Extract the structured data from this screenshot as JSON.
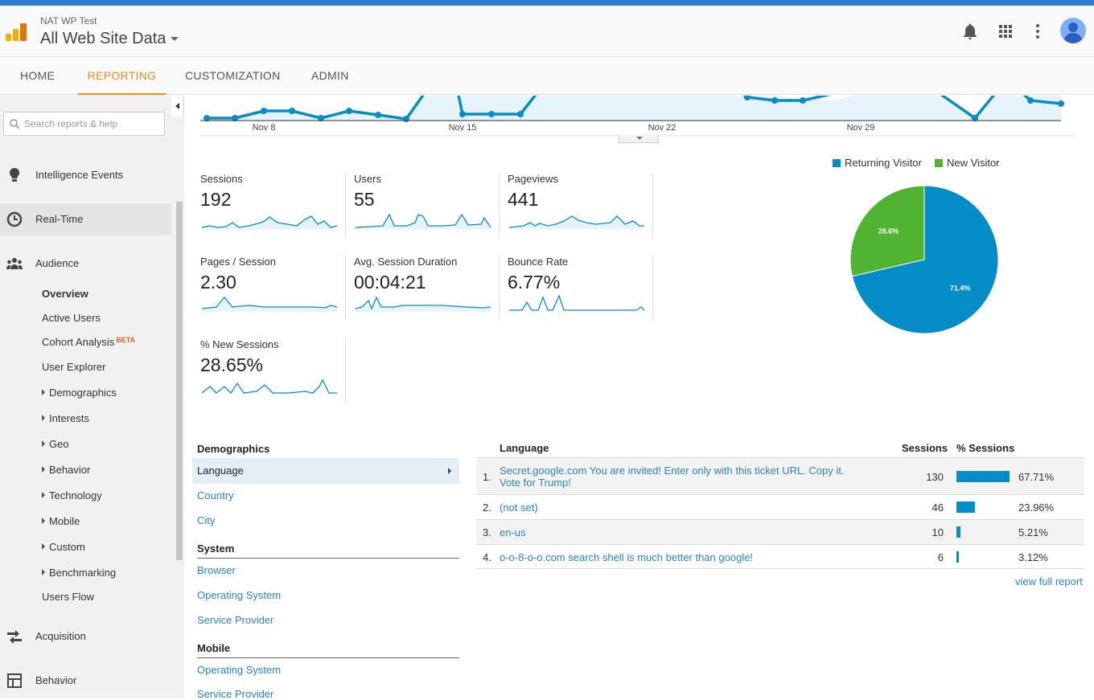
{
  "header": {
    "account": "NAT WP Test",
    "property": "All Web Site Data",
    "icons": [
      "logo-icon",
      "bell-icon",
      "apps-grid-icon",
      "more-vert-icon",
      "avatar"
    ]
  },
  "nav": {
    "tabs": [
      "HOME",
      "REPORTING",
      "CUSTOMIZATION",
      "ADMIN"
    ],
    "active": "REPORTING"
  },
  "sidebar": {
    "search_placeholder": "Search reports & help",
    "sections": {
      "intelligence": "Intelligence Events",
      "realtime": "Real-Time",
      "audience": "Audience",
      "acquisition": "Acquisition",
      "behavior": "Behavior"
    },
    "audience_items": {
      "overview": "Overview",
      "active_users": "Active Users",
      "cohort": "Cohort Analysis",
      "beta": "BETA",
      "user_explorer": "User Explorer",
      "demographics": "Demographics",
      "interests": "Interests",
      "geo": "Geo",
      "behavior": "Behavior",
      "technology": "Technology",
      "mobile": "Mobile",
      "custom": "Custom",
      "benchmarking": "Benchmarking",
      "users_flow": "Users Flow"
    }
  },
  "timeline": {
    "x_labels": [
      "Nov 8",
      "Nov 15",
      "Nov 22",
      "Nov 29"
    ]
  },
  "metrics": {
    "sessions": {
      "name": "Sessions",
      "value": "192"
    },
    "users": {
      "name": "Users",
      "value": "55"
    },
    "pageviews": {
      "name": "Pageviews",
      "value": "441"
    },
    "pages_session": {
      "name": "Pages / Session",
      "value": "2.30"
    },
    "duration": {
      "name": "Avg. Session Duration",
      "value": "00:04:21"
    },
    "bounce": {
      "name": "Bounce Rate",
      "value": "6.77%"
    },
    "new_sessions": {
      "name": "% New Sessions",
      "value": "28.65%"
    }
  },
  "chart_data": {
    "type": "pie",
    "series": [
      {
        "name": "Returning Visitor",
        "value": 71.4,
        "label": "71.4%",
        "color": "#058dc7"
      },
      {
        "name": "New Visitor",
        "value": 28.6,
        "label": "28.6%",
        "color": "#50b432"
      }
    ]
  },
  "demographics": {
    "heading_demo": "Demographics",
    "language": "Language",
    "country": "Country",
    "city": "City",
    "heading_system": "System",
    "browser": "Browser",
    "os": "Operating System",
    "sp": "Service Provider",
    "heading_mobile": "Mobile",
    "mobile_os": "Operating System",
    "mobile_sp": "Service Provider"
  },
  "language_table": {
    "headers": {
      "lang": "Language",
      "sessions": "Sessions",
      "pct": "% Sessions"
    },
    "rows": [
      {
        "idx": "1.",
        "lang": "Secret.google.com You are invited! Enter only with this ticket URL. Copy it. Vote for Trump!",
        "sessions": "130",
        "pct": "67.71%",
        "share": 0.6771
      },
      {
        "idx": "2.",
        "lang": "(not set)",
        "sessions": "46",
        "pct": "23.96%",
        "share": 0.2396
      },
      {
        "idx": "3.",
        "lang": "en-us",
        "sessions": "10",
        "pct": "5.21%",
        "share": 0.0521
      },
      {
        "idx": "4.",
        "lang": "o-o-8-o-o.com search shell is much better than google!",
        "sessions": "6",
        "pct": "3.12%",
        "share": 0.0312
      }
    ],
    "view_full": "view full report"
  }
}
